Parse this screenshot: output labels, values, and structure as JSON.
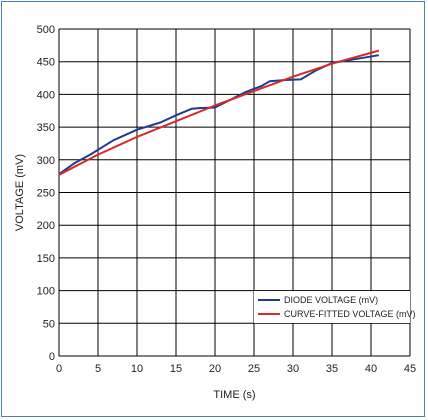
{
  "chart_data": {
    "type": "line",
    "title": "",
    "xlabel": "TIME (s)",
    "ylabel": "VOLTAGE (mV)",
    "xlim": [
      0,
      45
    ],
    "ylim": [
      0,
      500
    ],
    "xticks": [
      0,
      5,
      10,
      15,
      20,
      25,
      30,
      35,
      40,
      45
    ],
    "yticks": [
      0,
      50,
      100,
      150,
      200,
      250,
      300,
      350,
      400,
      450,
      500
    ],
    "grid": true,
    "legend_position": "bottom-right",
    "series": [
      {
        "name": "DIODE VOLTAGE (mV)",
        "color": "#1f3c8f",
        "x": [
          0,
          2,
          4,
          7,
          10,
          13,
          15,
          17,
          18,
          20,
          22,
          24,
          26,
          27,
          29,
          31,
          33,
          35,
          37,
          39,
          41
        ],
        "y": [
          278,
          295,
          308,
          330,
          346,
          357,
          368,
          378,
          379,
          380,
          392,
          404,
          413,
          420,
          422,
          423,
          437,
          448,
          452,
          456,
          460
        ]
      },
      {
        "name": "CURVE-FITTED VOLTAGE (mV)",
        "color": "#d42a2a",
        "x": [
          0,
          5,
          10,
          15,
          20,
          25,
          30,
          35,
          41
        ],
        "y": [
          277,
          308,
          335,
          359,
          383,
          405,
          427,
          447,
          467
        ]
      }
    ]
  }
}
